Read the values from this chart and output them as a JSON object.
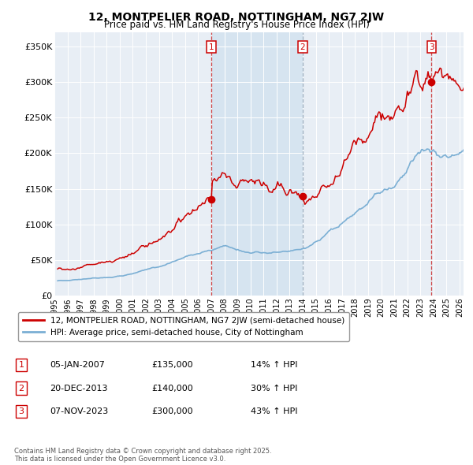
{
  "title": "12, MONTPELIER ROAD, NOTTINGHAM, NG7 2JW",
  "subtitle": "Price paid vs. HM Land Registry's House Price Index (HPI)",
  "ylabel_ticks": [
    "£0",
    "£50K",
    "£100K",
    "£150K",
    "£200K",
    "£250K",
    "£300K",
    "£350K"
  ],
  "ytick_vals": [
    0,
    50000,
    100000,
    150000,
    200000,
    250000,
    300000,
    350000
  ],
  "ylim": [
    0,
    370000
  ],
  "xlim_start": 1995.3,
  "xlim_end": 2026.3,
  "sale_dates": [
    2007.017,
    2013.972,
    2023.853
  ],
  "sale_prices": [
    135000,
    140000,
    300000
  ],
  "sale_labels": [
    "1",
    "2",
    "3"
  ],
  "red_line_color": "#cc0000",
  "blue_line_color": "#7bafd4",
  "shade_color": "#d6e4f0",
  "dashed_color_red": "#cc3333",
  "dashed_color_blue": "#aabbcc",
  "background_color": "#e8eef5",
  "grid_color": "#ffffff",
  "legend_entries": [
    "12, MONTPELIER ROAD, NOTTINGHAM, NG7 2JW (semi-detached house)",
    "HPI: Average price, semi-detached house, City of Nottingham"
  ],
  "table_rows": [
    [
      "1",
      "05-JAN-2007",
      "£135,000",
      "14% ↑ HPI"
    ],
    [
      "2",
      "20-DEC-2013",
      "£140,000",
      "30% ↑ HPI"
    ],
    [
      "3",
      "07-NOV-2023",
      "£300,000",
      "43% ↑ HPI"
    ]
  ],
  "footnote": "Contains HM Land Registry data © Crown copyright and database right 2025.\nThis data is licensed under the Open Government Licence v3.0."
}
